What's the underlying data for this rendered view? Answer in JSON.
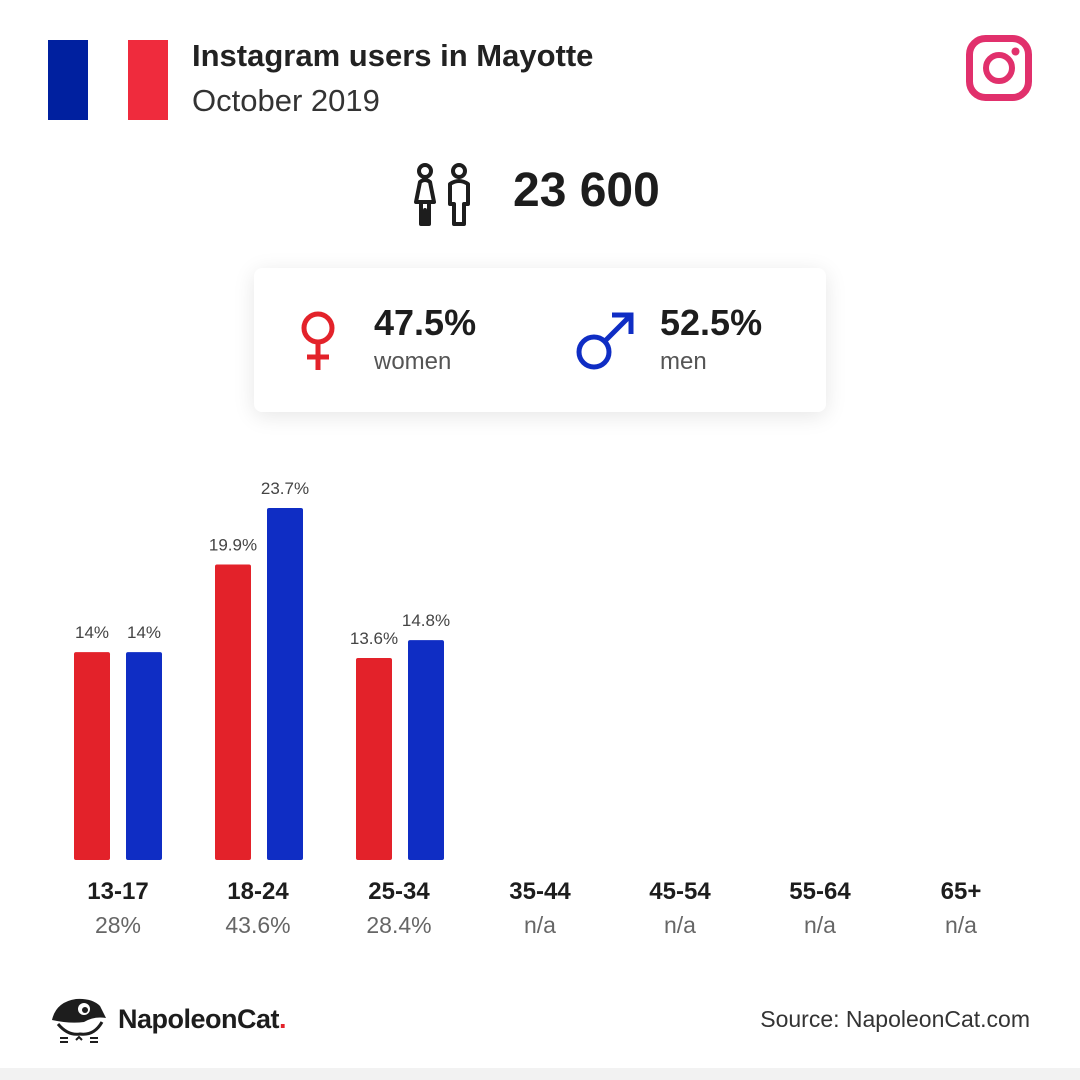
{
  "header": {
    "title": "Instagram users in Mayotte",
    "subtitle": "October 2019"
  },
  "colors": {
    "women": "#e3222a",
    "men": "#0f2dc4",
    "instagram": "#e1306c",
    "flag_blue": "#00209f",
    "flag_red": "#ef2b3d"
  },
  "icons": {
    "flag": "france-flag-icon",
    "brand": "instagram-icon",
    "users": "users-icon",
    "female": "female-icon",
    "male": "male-icon",
    "logo": "napoleoncat-logo-icon"
  },
  "total_users": "23 600",
  "gender": {
    "women": {
      "pct": "47.5%",
      "label": "women"
    },
    "men": {
      "pct": "52.5%",
      "label": "men"
    }
  },
  "chart_data": {
    "type": "bar",
    "categories": [
      "13-17",
      "18-24",
      "25-34",
      "35-44",
      "45-54",
      "55-64",
      "65+"
    ],
    "totals": [
      "28%",
      "43.6%",
      "28.4%",
      "n/a",
      "n/a",
      "n/a",
      "n/a"
    ],
    "series": [
      {
        "name": "women",
        "values": [
          14,
          19.9,
          13.6,
          null,
          null,
          null,
          null
        ],
        "labels": [
          "14%",
          "19.9%",
          "13.6%",
          "",
          "",
          "",
          ""
        ]
      },
      {
        "name": "men",
        "values": [
          14,
          23.7,
          14.8,
          null,
          null,
          null,
          null
        ],
        "labels": [
          "14%",
          "23.7%",
          "14.8%",
          "",
          "",
          "",
          ""
        ]
      }
    ],
    "ylim": [
      0,
      23.7
    ]
  },
  "footer": {
    "brand_name": "NapoleonCat",
    "brand_dot": ".",
    "source": "Source: NapoleonCat.com"
  }
}
